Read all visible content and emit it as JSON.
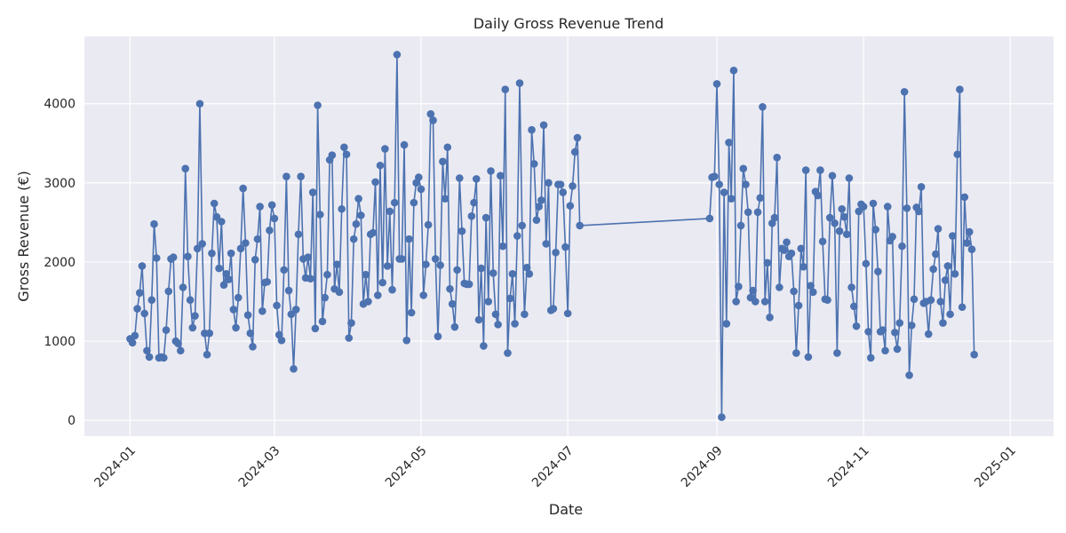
{
  "chart_data": {
    "type": "line",
    "title": "Daily Gross Revenue Trend",
    "xlabel": "Date",
    "ylabel": "Gross Revenue (€)",
    "x_ticks": [
      "2024-01",
      "2024-03",
      "2024-05",
      "2024-07",
      "2024-09",
      "2024-11",
      "2025-01"
    ],
    "y_ticks": [
      0,
      1000,
      2000,
      3000,
      4000
    ],
    "xlim": [
      "2023-12-13",
      "2025-01-19"
    ],
    "ylim": [
      -200,
      4850
    ],
    "grid": true,
    "legend": "none",
    "series_color": "#4c72b0",
    "background_color": "#eaeaf2",
    "series": [
      {
        "segments": [
          {
            "start": "2024-01-01",
            "values": [
              1030,
              980,
              1070,
              1410,
              1610,
              1950,
              1350,
              880,
              800,
              1520,
              2480,
              2050,
              790,
              800,
              790,
              1140,
              1630,
              2040,
              2060,
              1000,
              970,
              880,
              1680,
              3180,
              2070,
              1520,
              1170,
              1320,
              2170,
              4000,
              2230,
              1100,
              830,
              1100,
              2110,
              2740,
              2570,
              1920,
              2510,
              1710,
              1850,
              1780,
              2110,
              1400,
              1170,
              1550,
              2170,
              2930,
              2240,
              1330,
              1100,
              930,
              2030,
              2290,
              2700,
              1380,
              1740,
              1750,
              2400,
              2720,
              2550,
              1450,
              1080,
              1010,
              1900,
              3080,
              1640,
              1340,
              650,
              1400,
              2350,
              3080,
              2040,
              1800,
              2060,
              1790,
              2880,
              1160,
              3980,
              2600,
              1250,
              1550,
              1840,
              3290,
              3350,
              1660,
              1970,
              1620,
              2670,
              3450,
              3360,
              1040,
              1230,
              2290,
              2480,
              2800,
              2590,
              1470,
              1840,
              1500,
              2350,
              2370,
              3010,
              1580,
              3220,
              1740,
              3430,
              1950,
              2640,
              1650,
              2750,
              4620,
              2040,
              2040,
              3480,
              1010,
              2290,
              1360,
              2750,
              3000,
              3070,
              2920,
              1580,
              1970,
              2470,
              3870,
              3790,
              2040,
              1060,
              1960,
              3270,
              2800,
              3450,
              1660,
              1470,
              1180,
              1900,
              3060,
              2390,
              1730,
              1720,
              1720,
              2580,
              2750,
              3050,
              1270,
              1920,
              940,
              2560,
              1500,
              3150,
              1860,
              1340,
              1210,
              3090,
              2200,
              4180,
              850,
              1540,
              1850,
              1220,
              2330,
              4260,
              2460,
              1340,
              1930,
              1850,
              3670,
              3240,
              2530,
              2700,
              2780,
              3730,
              2230,
              3000,
              1390,
              1410,
              2120,
              2980,
              2980,
              2880,
              2190,
              1350,
              2710,
              2960,
              3390,
              3570,
              2460
            ]
          },
          {
            "start": "2024-08-29",
            "values": [
              2550,
              3070,
              3080,
              4250,
              2980,
              40,
              2880,
              1220,
              3510,
              2800,
              4420,
              1500,
              1690,
              2460,
              3180,
              2980,
              2630,
              1550,
              1640,
              1500,
              2630,
              2810,
              3960,
              1500,
              1990,
              1300,
              2490,
              2560,
              3320,
              1680,
              2170,
              2150,
              2250,
              2070,
              2110,
              1630,
              850,
              1450,
              2170,
              1940,
              3160,
              800,
              1700,
              1620,
              2890,
              2840,
              3160,
              2260,
              1530,
              1520,
              2560,
              3090,
              2490,
              850,
              2390,
              2670,
              2570,
              2350,
              3060,
              1680,
              1440,
              1190,
              2640,
              2730,
              2700,
              1980,
              1120,
              790,
              2740,
              2410,
              1880,
              1120,
              1140,
              880,
              2700,
              2270,
              2320,
              1110,
              900,
              1230,
              2200,
              4150,
              2680,
              570,
              1200,
              1530,
              2690,
              2640,
              2950,
              1480,
              1500,
              1090,
              1520,
              1910,
              2100,
              2420,
              1500,
              1230,
              1770,
              1950,
              1340,
              2330,
              1850,
              3360,
              4180,
              1430,
              2820,
              2240,
              2380,
              2160,
              830
            ]
          }
        ]
      }
    ]
  }
}
